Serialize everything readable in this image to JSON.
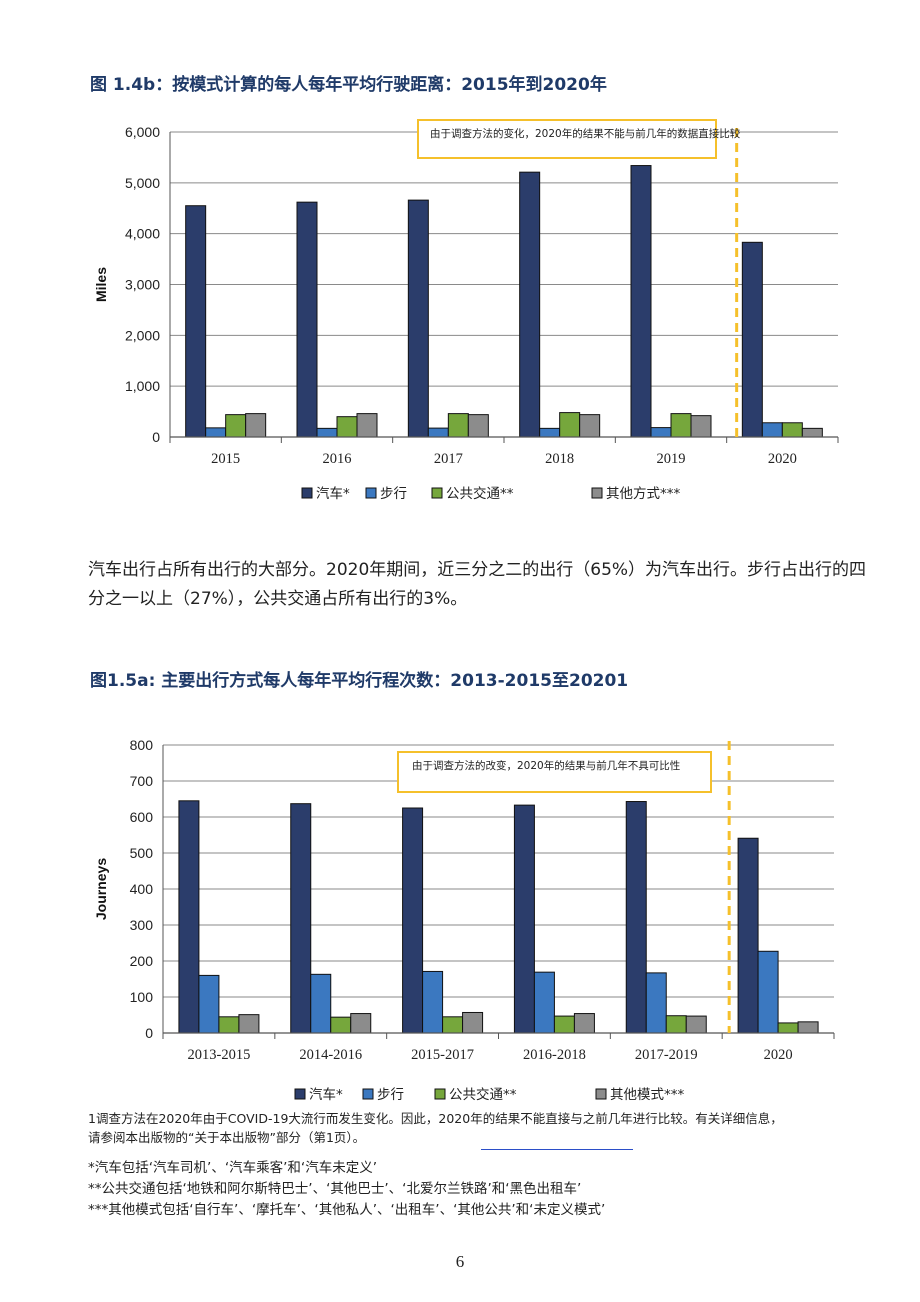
{
  "figures": [
    {
      "title": "图 1.4b：按模式计算的每人每年平均行驶距离：2015年到2020年"
    },
    {
      "title": "图1.5a: 主要出行方式每人每年平均行程次数：2013-2015至20201"
    }
  ],
  "paragraph": "汽车出行占所有出行的大部分。2020年期间，近三分之二的出行（65%）为汽车出行。步行占出行的四分之一以上（27%），公共交通占所有出行的3%。",
  "footnote": {
    "line1": "1调查方法在2020年由于COVID-19大流行而发生变化。因此，2020年的结果不能直接与之前几年进行比较。有关详细信息，",
    "line2": "请参阅本出版物的“关于本出版物”部分（第1页）。"
  },
  "definitions": [
    "*汽车包括‘汽车司机’、‘汽车乘客’和‘汽车未定义’",
    "**公共交通包括‘地铁和阿尔斯特巴士’、‘其他巴士’、‘北爱尔兰铁路’和‘黑色出租车’",
    "***其他模式包括‘自行车’、‘摩托车’、‘其他私人’、‘出租车’、‘其他公共’和‘未定义模式’"
  ],
  "page_number": "6",
  "colors": {
    "car": "#2b3d6b",
    "walk": "#3b78c0",
    "public": "#76a73c",
    "other": "#8c8c8c",
    "annotation": "#f5c02b",
    "title": "#1f3a68"
  },
  "chart_data": [
    {
      "type": "bar",
      "ylabel": "Miles",
      "ylim": [
        0,
        6000
      ],
      "yticks": [
        0,
        1000,
        2000,
        3000,
        4000,
        5000,
        6000
      ],
      "ytick_labels": [
        "0",
        "1,000",
        "2,000",
        "3,000",
        "4,000",
        "5,000",
        "6,000"
      ],
      "categories": [
        "2015",
        "2016",
        "2017",
        "2018",
        "2019",
        "2020"
      ],
      "series": [
        {
          "name": "汽车*",
          "values": [
            4550,
            4620,
            4660,
            5210,
            5340,
            3830
          ]
        },
        {
          "name": "步行",
          "values": [
            180,
            170,
            175,
            170,
            185,
            280
          ]
        },
        {
          "name": "公共交通**",
          "values": [
            440,
            400,
            460,
            480,
            460,
            280
          ]
        },
        {
          "name": "其他方式***",
          "values": [
            460,
            460,
            440,
            440,
            420,
            170
          ]
        }
      ],
      "annotation": "由于调查方法的变化，2020年的结果不能与前几年的数据直接比较",
      "grid": true,
      "legend": "bottom"
    },
    {
      "type": "bar",
      "ylabel": "Journeys",
      "ylim": [
        0,
        800
      ],
      "yticks": [
        0,
        100,
        200,
        300,
        400,
        500,
        600,
        700,
        800
      ],
      "ytick_labels": [
        "0",
        "100",
        "200",
        "300",
        "400",
        "500",
        "600",
        "700",
        "800"
      ],
      "categories": [
        "2013-2015",
        "2014-2016",
        "2015-2017",
        "2016-2018",
        "2017-2019",
        "2020"
      ],
      "series": [
        {
          "name": "汽车*",
          "values": [
            645,
            637,
            625,
            633,
            643,
            541
          ]
        },
        {
          "name": "步行",
          "values": [
            160,
            163,
            171,
            169,
            167,
            227
          ]
        },
        {
          "name": "公共交通**",
          "values": [
            45,
            44,
            45,
            47,
            48,
            28
          ]
        },
        {
          "name": "其他模式***",
          "values": [
            51,
            54,
            57,
            54,
            47,
            31
          ]
        }
      ],
      "annotation": "由于调查方法的改变，2020年的结果与前几年不具可比性",
      "grid": true,
      "legend": "bottom"
    }
  ]
}
